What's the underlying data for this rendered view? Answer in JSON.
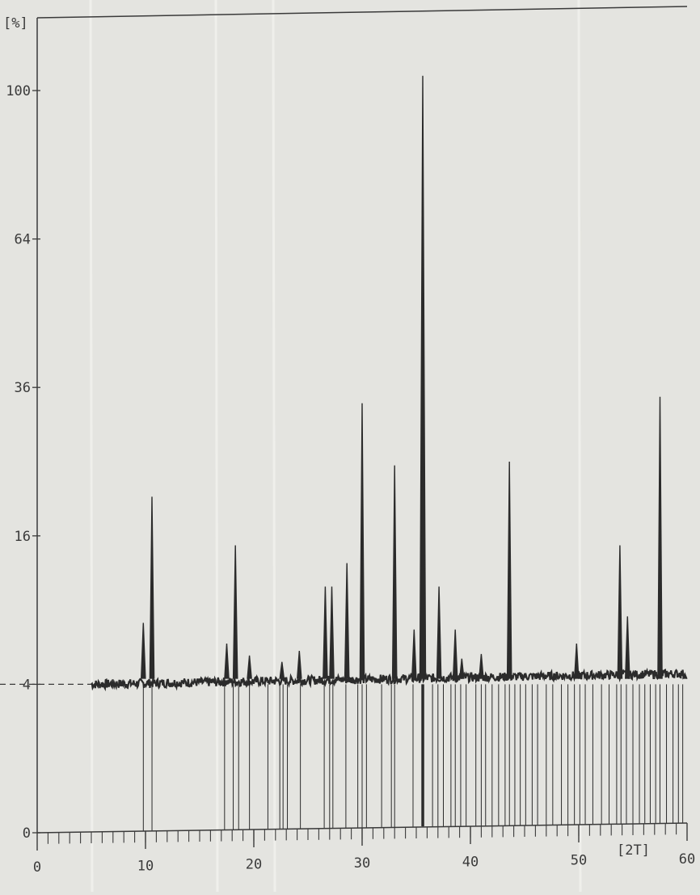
{
  "chart_data": {
    "type": "line",
    "y_unit_label": "[%]",
    "x_unit_label": "[2T]",
    "xlim": [
      0,
      60
    ],
    "y_scale": "sqrt",
    "ylim": [
      0,
      110
    ],
    "x_ticks": [
      0,
      10,
      20,
      30,
      40,
      50,
      60
    ],
    "x_tick_labels": [
      "0",
      "10",
      "20",
      "30",
      "40",
      "50",
      "60"
    ],
    "y_ticks": [
      0,
      4,
      16,
      36,
      64,
      100
    ],
    "y_tick_labels": [
      "0",
      "4",
      "16",
      "36",
      "64",
      "100"
    ],
    "baseline_level": 4,
    "grid": false,
    "colors": {
      "line": "#2b2b2b",
      "paper": "#e4e4e0",
      "axis": "#3a3a3a"
    },
    "series": [
      {
        "x": [
          5.0,
          9.8,
          10.6,
          17.5,
          18.3,
          19.6,
          22.6,
          24.2,
          26.6,
          27.2,
          28.6,
          30.0,
          33.0,
          34.8,
          35.6,
          37.1,
          38.6,
          39.2,
          41.0,
          43.6,
          49.8,
          53.8,
          54.5,
          57.5,
          59.8
        ],
        "y": [
          4.2,
          8.0,
          20.5,
          6.5,
          15.0,
          5.7,
          5.3,
          6.0,
          11.0,
          11.0,
          13.2,
          33.5,
          24.5,
          7.5,
          104.0,
          11.0,
          7.5,
          5.5,
          5.8,
          25.0,
          6.5,
          15.0,
          8.5,
          34.5,
          4.6
        ]
      }
    ],
    "reference_lines_x": [
      9.8,
      10.6,
      17.3,
      18.1,
      18.6,
      19.6,
      21.3,
      22.4,
      22.7,
      23.1,
      24.3,
      26.5,
      27.0,
      27.3,
      28.5,
      29.6,
      30.0,
      30.4,
      31.8,
      32.7,
      33.0,
      34.7,
      35.6,
      36.5,
      37.0,
      37.5,
      38.2,
      38.6,
      39.1,
      39.6,
      40.5,
      41.0,
      41.4,
      42.0,
      42.6,
      43.2,
      43.6,
      44.1,
      44.6,
      45.1,
      45.7,
      46.2,
      47.0,
      47.6,
      48.4,
      49.0,
      49.6,
      50.1,
      50.6,
      51.3,
      52.1,
      52.8,
      53.5,
      53.9,
      54.4,
      55.0,
      55.6,
      56.1,
      56.6,
      57.1,
      57.5,
      58.1,
      58.7,
      59.2,
      59.6
    ]
  }
}
